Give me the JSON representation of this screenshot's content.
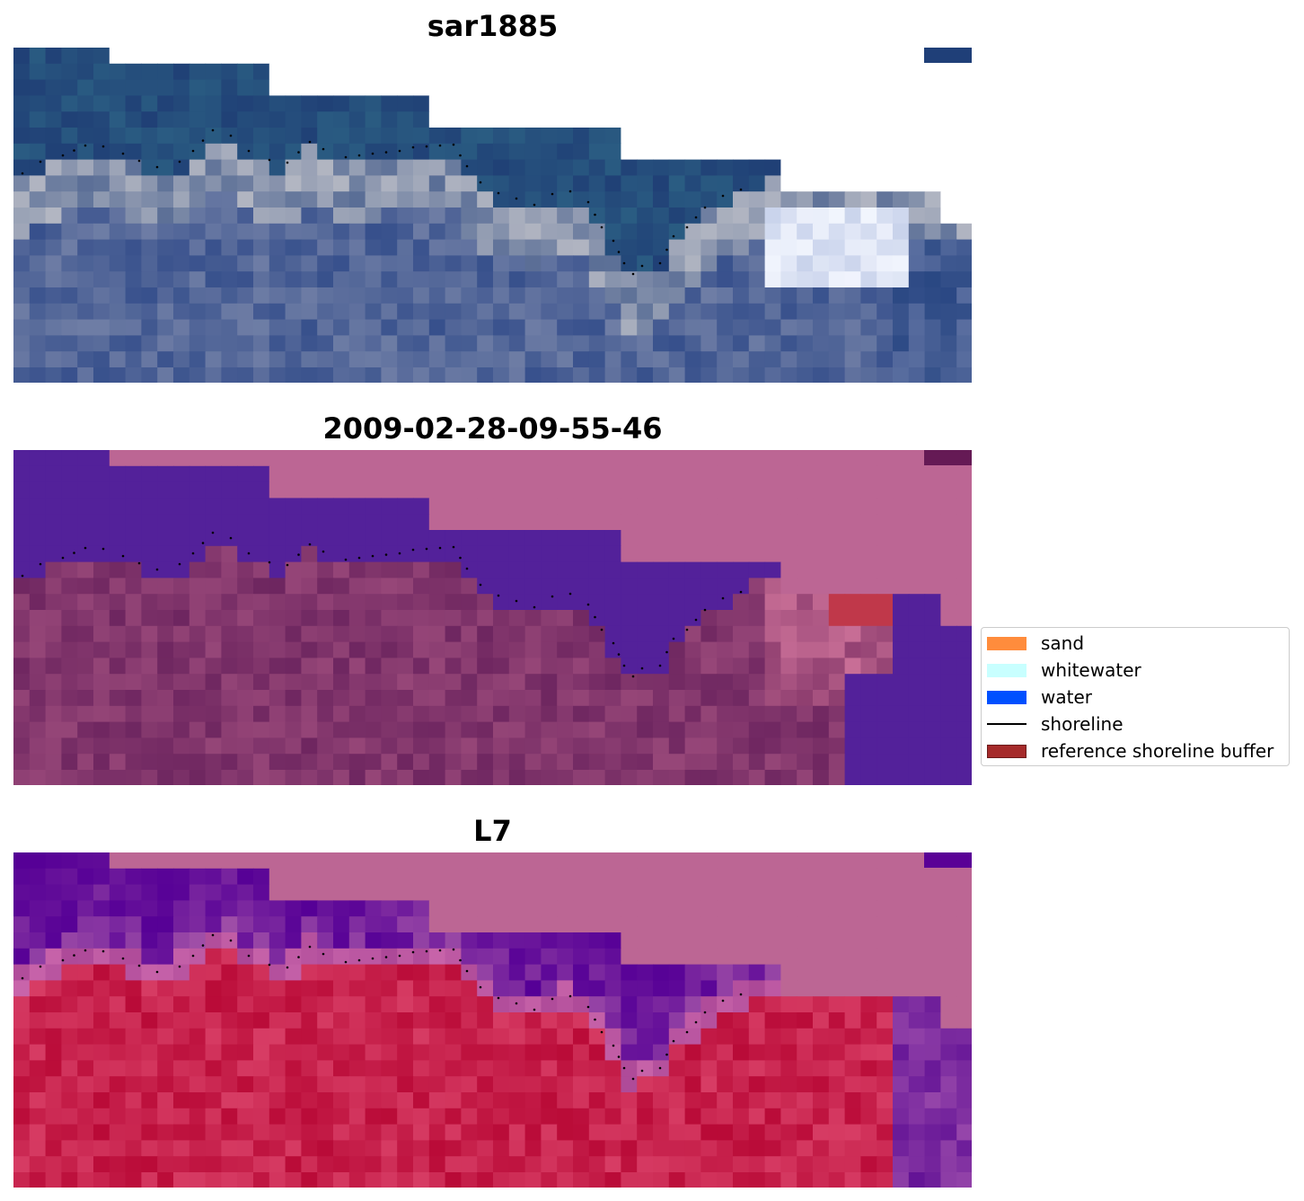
{
  "panels": [
    {
      "title": "sar1885",
      "kind": "rgb"
    },
    {
      "title": "2009-02-28-09-55-46",
      "kind": "classification"
    },
    {
      "title": "L7",
      "kind": "index"
    }
  ],
  "legend": {
    "items": [
      {
        "label": "sand",
        "type": "patch",
        "color": "#ff8c3c"
      },
      {
        "label": "whitewater",
        "type": "patch",
        "color": "#c8ffff"
      },
      {
        "label": "water",
        "type": "patch",
        "color": "#0050ff"
      },
      {
        "label": "shoreline",
        "type": "line",
        "color": "#000000"
      },
      {
        "label": "reference shoreline buffer",
        "type": "patch",
        "color": "#a52a2a"
      }
    ]
  }
}
